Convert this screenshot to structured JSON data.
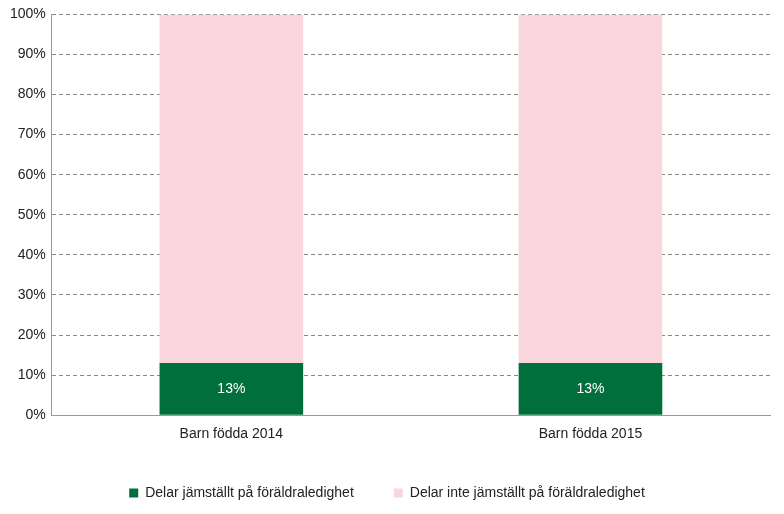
{
  "chart_data": {
    "type": "bar",
    "stacked": true,
    "grid": true,
    "legend": "bottom",
    "categories": [
      "Barn födda 2014",
      "Barn födda 2015"
    ],
    "series": [
      {
        "name": "Delar jämställt på föräldraledighet",
        "color": "#006f3c",
        "values": [
          13,
          13
        ],
        "data_labels": true,
        "value_labels": [
          "13%",
          "13%"
        ]
      },
      {
        "name": "Delar inte jämställt på föräldraledighet",
        "color": "#f9d5de",
        "values": [
          87,
          87
        ]
      }
    ],
    "ylim": [
      0,
      100
    ],
    "yticks": [
      {
        "value": 0,
        "label": "0%"
      },
      {
        "value": 10,
        "label": "10%"
      },
      {
        "value": 20,
        "label": "20%"
      },
      {
        "value": 30,
        "label": "30%"
      },
      {
        "value": 40,
        "label": "40%"
      },
      {
        "value": 50,
        "label": "50%"
      },
      {
        "value": 60,
        "label": "60%"
      },
      {
        "value": 70,
        "label": "70%"
      },
      {
        "value": 80,
        "label": "80%"
      },
      {
        "value": 90,
        "label": "90%"
      },
      {
        "value": 100,
        "label": "100%"
      }
    ]
  }
}
